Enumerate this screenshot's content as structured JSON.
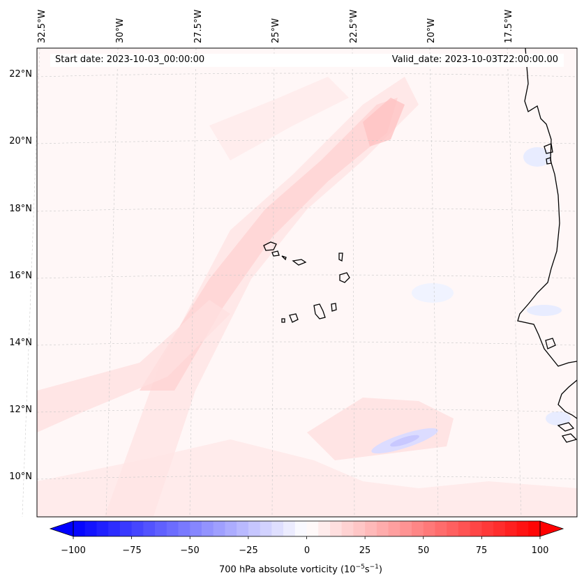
{
  "map": {
    "region": "Cape Verde / West African coast",
    "longitude_labels": [
      "32.5°W",
      "30°W",
      "27.5°W",
      "25°W",
      "22.5°W",
      "20°W",
      "17.5°W"
    ],
    "latitude_labels": [
      "22°N",
      "20°N",
      "18°N",
      "16°N",
      "14°N",
      "12°N",
      "10°N"
    ],
    "start_date": "Start date: 2023-10-03_00:00:00",
    "valid_date": "Valid_date: 2023-10-03T22:00:00.00",
    "colorbar": {
      "title": "700 hPa absolute vorticity (10",
      "title_exp1": "−5",
      "title_mid": "s",
      "title_exp2": "−1",
      "title_end": ")",
      "ticks": [
        "−100",
        "−75",
        "−50",
        "−25",
        "0",
        "25",
        "50",
        "75",
        "100"
      ],
      "min": -100,
      "max": 100,
      "colormap": "bwr",
      "neg_color": "#0000ff",
      "mid_color": "#ffffff",
      "pos_color": "#ff0000"
    }
  }
}
